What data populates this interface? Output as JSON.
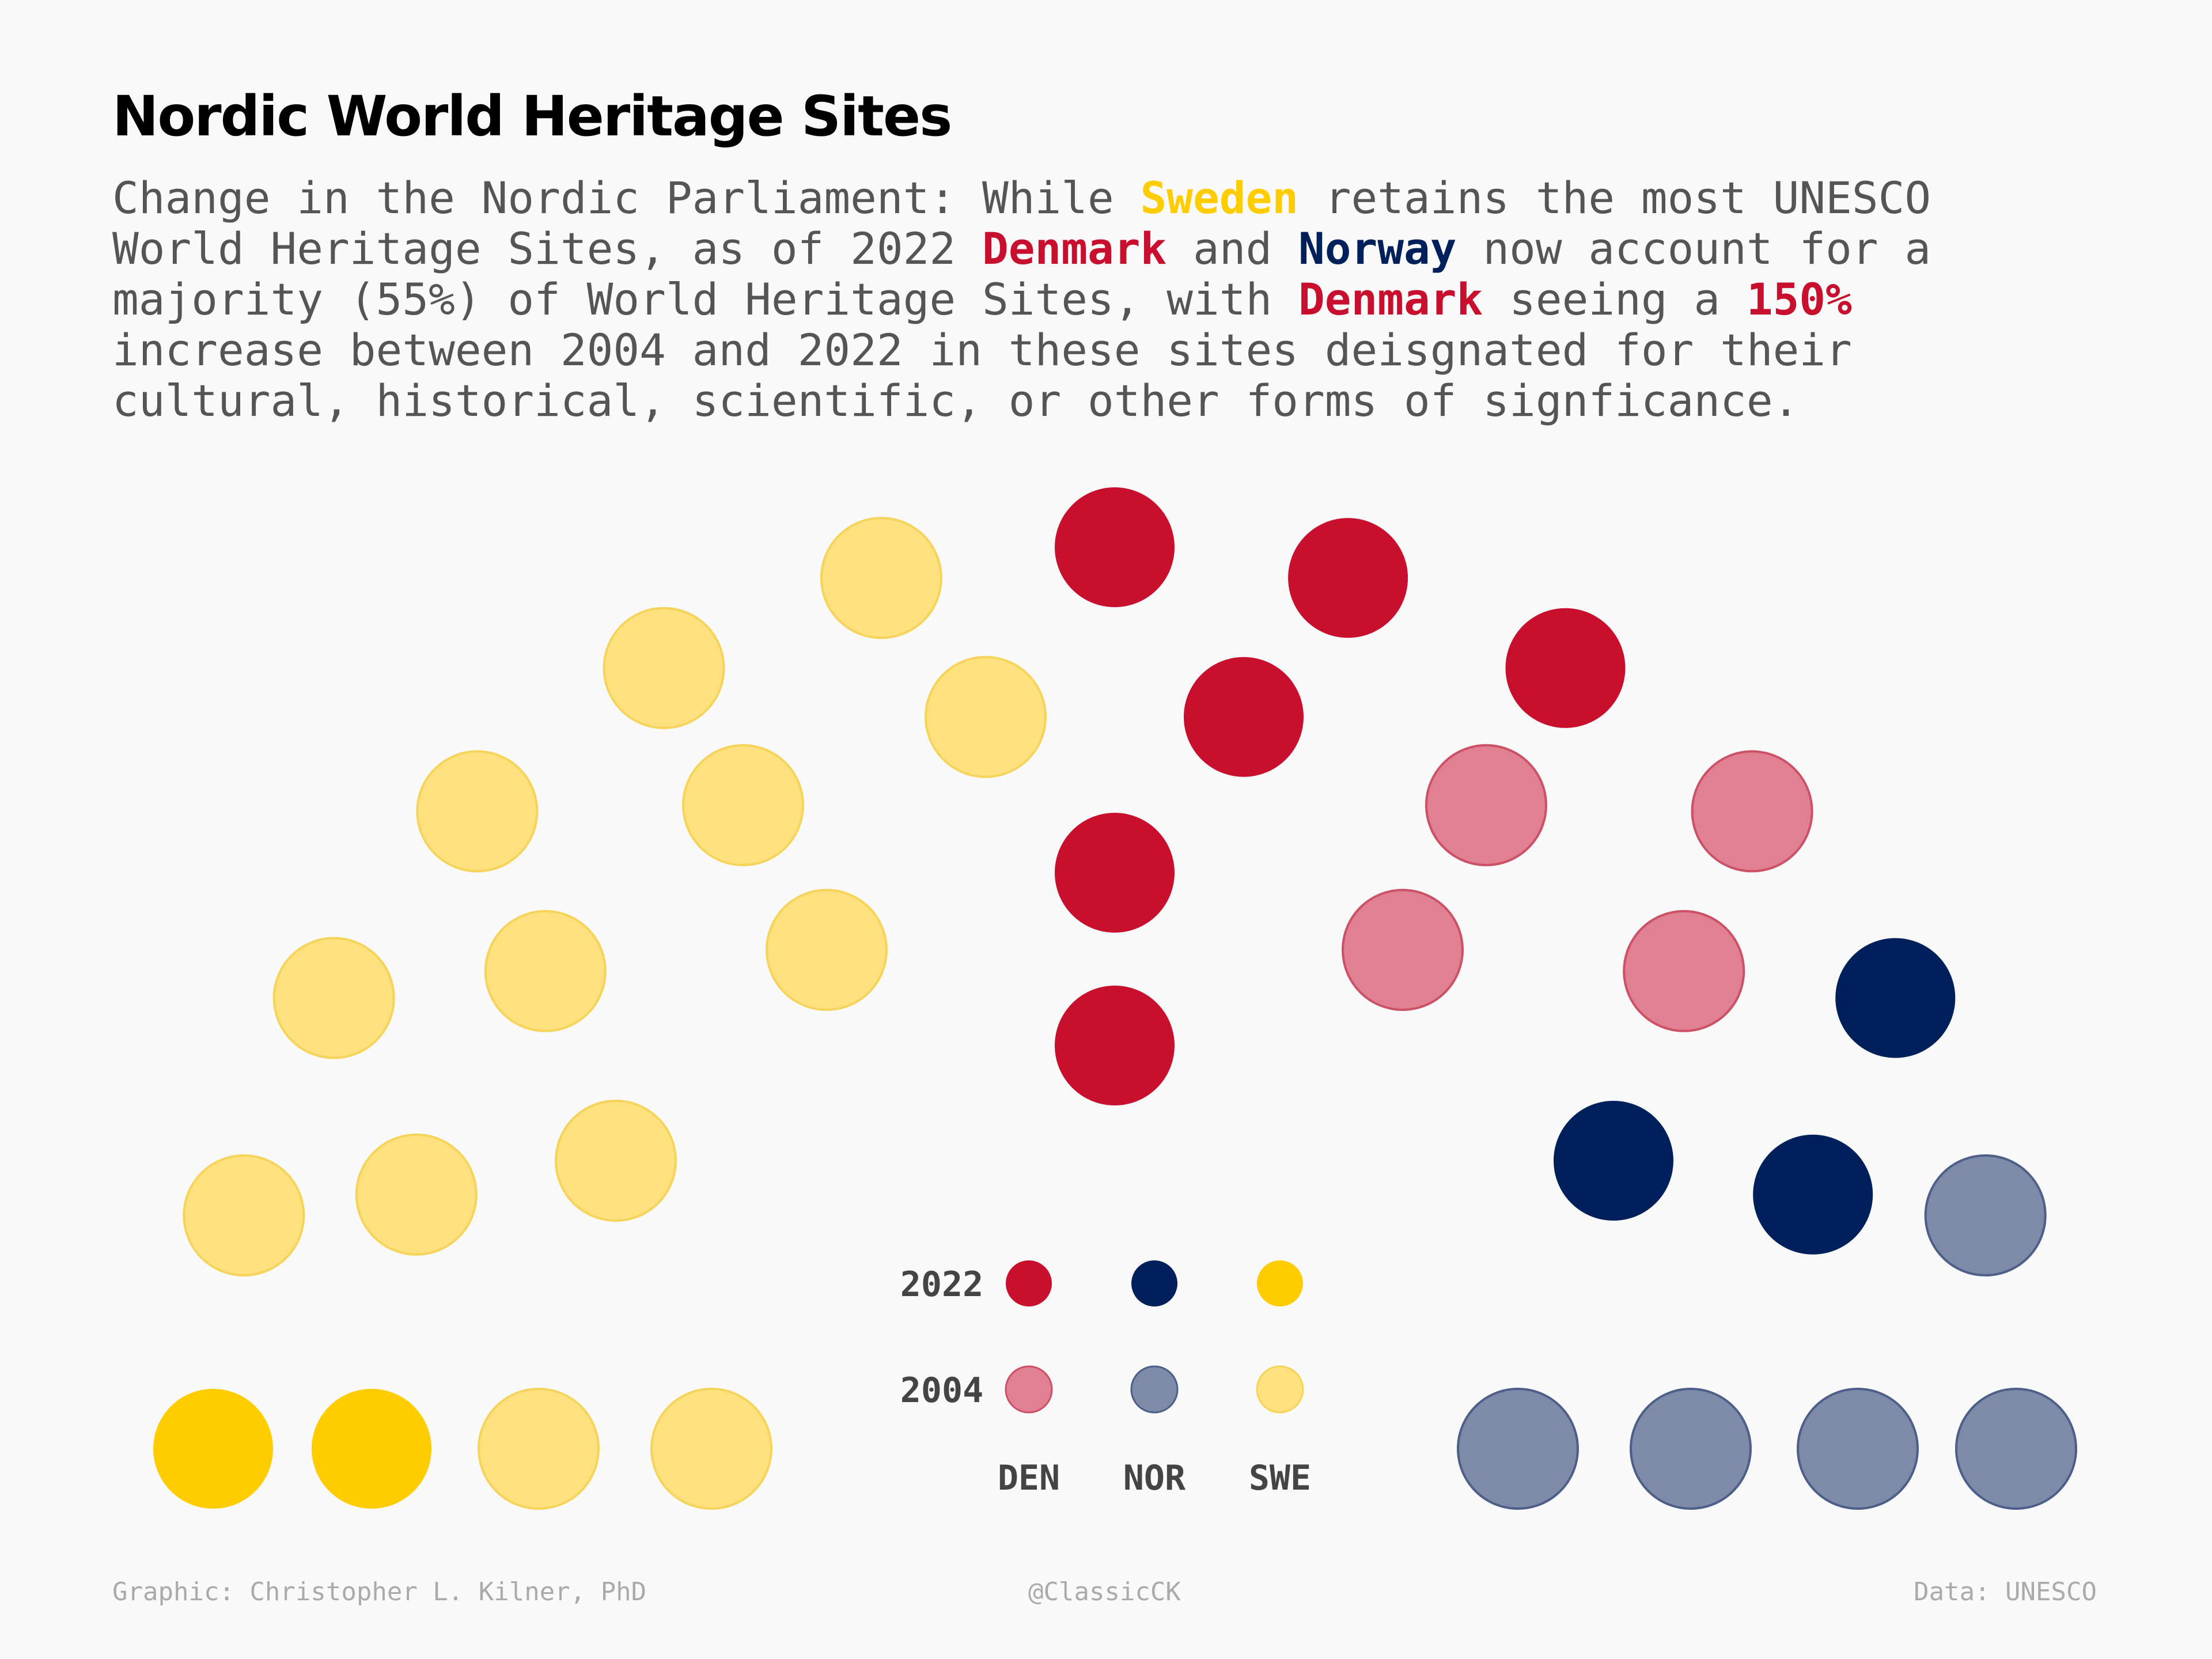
{
  "title": "Nordic World Heritage Sites",
  "subtitle": {
    "lines": [
      [
        {
          "text": "Change in the Nordic Parliament: While ",
          "style": ""
        },
        {
          "text": "Sweden",
          "style": "swe"
        },
        {
          "text": " retains the most UNESCO",
          "style": ""
        }
      ],
      [
        {
          "text": "World Heritage Sites, as of 2022 ",
          "style": ""
        },
        {
          "text": "Denmark",
          "style": "den"
        },
        {
          "text": " and ",
          "style": ""
        },
        {
          "text": "Norway",
          "style": "nor"
        },
        {
          "text": " now account for a",
          "style": ""
        }
      ],
      [
        {
          "text": "majority (55%) of World Heritage Sites, with ",
          "style": ""
        },
        {
          "text": "Denmark",
          "style": "den"
        },
        {
          "text": " seeing a ",
          "style": ""
        },
        {
          "text": "150%",
          "style": "den"
        }
      ],
      [
        {
          "text": "increase between 2004 and 2022 in these sites deisgnated for their",
          "style": ""
        }
      ],
      [
        {
          "text": "cultural, historical, scientific, or other forms of signficance.",
          "style": ""
        }
      ]
    ]
  },
  "colors": {
    "den_2022": "#c8102e",
    "den_2004": "#e08090",
    "nor_2022": "#00205b",
    "nor_2004": "#7d8aa8",
    "swe_2022": "#ffcc00",
    "swe_2004": "#fce17e"
  },
  "chart_data": {
    "type": "parliament",
    "title": "Nordic World Heritage Sites",
    "parties": [
      {
        "code": "SWE",
        "name": "Sweden",
        "sites_2004": 13,
        "sites_2022": 15
      },
      {
        "code": "DEN",
        "name": "Denmark",
        "sites_2004": 4,
        "sites_2022": 10
      },
      {
        "code": "NOR",
        "name": "Norway",
        "sites_2004": 5,
        "sites_2022": 8
      }
    ],
    "seat_order": [
      "SWE",
      "SWE",
      "SWE",
      "SWE",
      "SWE",
      "SWE",
      "SWE",
      "SWE",
      "SWE",
      "SWE",
      "SWE",
      "SWE",
      "SWE",
      "SWE",
      "SWE",
      "DEN",
      "DEN",
      "DEN",
      "DEN",
      "DEN",
      "DEN",
      "DEN",
      "DEN",
      "DEN",
      "DEN",
      "NOR",
      "NOR",
      "NOR",
      "NOR",
      "NOR",
      "NOR",
      "NOR",
      "NOR"
    ],
    "seat_years": [
      "2022",
      "2022",
      "2004",
      "2004",
      "2004",
      "2004",
      "2004",
      "2004",
      "2004",
      "2004",
      "2004",
      "2004",
      "2004",
      "2004",
      "2004",
      "2022",
      "2022",
      "2022",
      "2022",
      "2022",
      "2022",
      "2004",
      "2004",
      "2004",
      "2004",
      "2022",
      "2022",
      "2022",
      "2004",
      "2004",
      "2004",
      "2004",
      "2004"
    ],
    "legend": {
      "rows": [
        "2022",
        "2004"
      ],
      "columns": [
        "DEN",
        "NOR",
        "SWE"
      ]
    }
  },
  "footer": {
    "left": "Graphic: Christopher L. Kilner, PhD",
    "center": "@ClassicCK",
    "right": "Data: UNESCO"
  }
}
